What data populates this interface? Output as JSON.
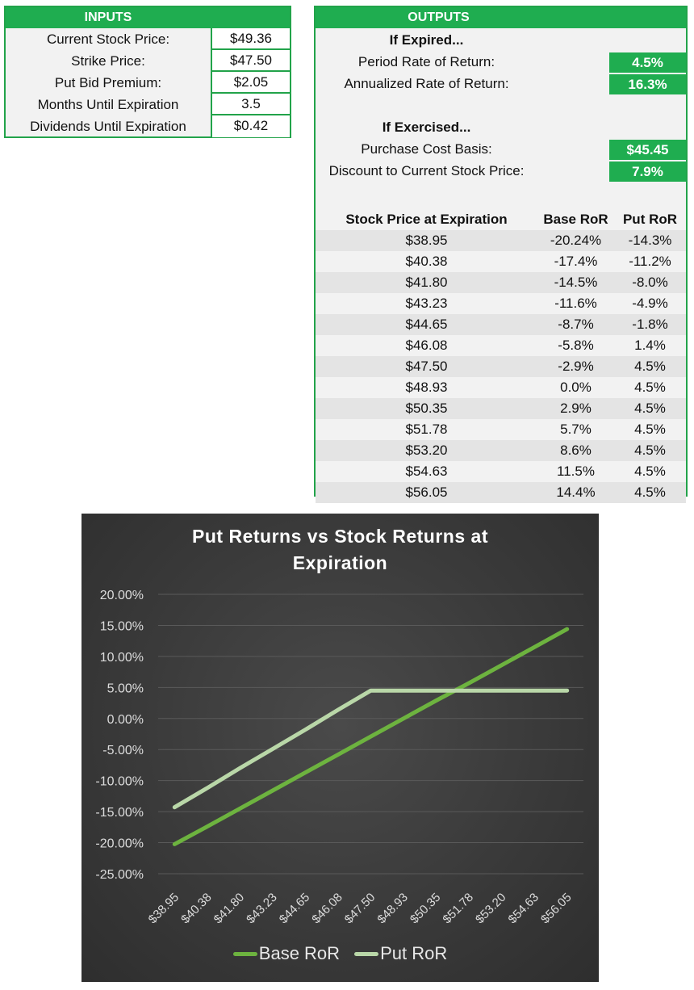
{
  "inputs": {
    "header": "INPUTS",
    "rows": [
      {
        "label": "Current Stock Price:",
        "value": "$49.36"
      },
      {
        "label": "Strike Price:",
        "value": "$47.50"
      },
      {
        "label": "Put Bid Premium:",
        "value": "$2.05"
      },
      {
        "label": "Months Until Expiration",
        "value": "3.5"
      },
      {
        "label": "Dividends Until Expiration",
        "value": "$0.42"
      }
    ]
  },
  "outputs": {
    "header": "OUTPUTS",
    "expired": {
      "heading": "If Expired...",
      "period_label": "Period Rate of Return:",
      "period_value": "4.5%",
      "annual_label": "Annualized Rate of Return:",
      "annual_value": "16.3%"
    },
    "exercised": {
      "heading": "If Exercised...",
      "basis_label": "Purchase Cost Basis:",
      "basis_value": "$45.45",
      "discount_label": "Discount to Current Stock Price:",
      "discount_value": "7.9%"
    },
    "table": {
      "headers": [
        "Stock Price at Expiration",
        "Base RoR",
        "Put RoR"
      ],
      "rows": [
        [
          "$38.95",
          "-20.24%",
          "-14.3%"
        ],
        [
          "$40.38",
          "-17.4%",
          "-11.2%"
        ],
        [
          "$41.80",
          "-14.5%",
          "-8.0%"
        ],
        [
          "$43.23",
          "-11.6%",
          "-4.9%"
        ],
        [
          "$44.65",
          "-8.7%",
          "-1.8%"
        ],
        [
          "$46.08",
          "-5.8%",
          "1.4%"
        ],
        [
          "$47.50",
          "-2.9%",
          "4.5%"
        ],
        [
          "$48.93",
          "0.0%",
          "4.5%"
        ],
        [
          "$50.35",
          "2.9%",
          "4.5%"
        ],
        [
          "$51.78",
          "5.7%",
          "4.5%"
        ],
        [
          "$53.20",
          "8.6%",
          "4.5%"
        ],
        [
          "$54.63",
          "11.5%",
          "4.5%"
        ],
        [
          "$56.05",
          "14.4%",
          "4.5%"
        ]
      ]
    }
  },
  "colors": {
    "accent_green": "#1fad50",
    "base_series": "#6db33f",
    "put_series": "#b9d7a8",
    "chart_bg": "#3c3c3c"
  },
  "chart_data": {
    "type": "line",
    "title": "Put Returns vs Stock Returns at Expiration",
    "title_lines": [
      "Put Returns vs Stock Returns at",
      "Expiration"
    ],
    "xlabel": "",
    "ylabel": "",
    "categories": [
      "$38.95",
      "$40.38",
      "$41.80",
      "$43.23",
      "$44.65",
      "$46.08",
      "$47.50",
      "$48.93",
      "$50.35",
      "$51.78",
      "$53.20",
      "$54.63",
      "$56.05"
    ],
    "series": [
      {
        "name": "Base RoR",
        "values": [
          -20.24,
          -17.4,
          -14.5,
          -11.6,
          -8.7,
          -5.8,
          -2.9,
          0.0,
          2.9,
          5.7,
          8.6,
          11.5,
          14.4
        ]
      },
      {
        "name": "Put RoR",
        "values": [
          -14.3,
          -11.2,
          -8.0,
          -4.9,
          -1.8,
          1.4,
          4.5,
          4.5,
          4.5,
          4.5,
          4.5,
          4.5,
          4.5
        ]
      }
    ],
    "yticks": [
      "20.00%",
      "15.00%",
      "10.00%",
      "5.00%",
      "0.00%",
      "-5.00%",
      "-10.00%",
      "-15.00%",
      "-20.00%",
      "-25.00%"
    ],
    "ylim": [
      -25,
      20
    ],
    "grid": true,
    "legend_position": "bottom"
  }
}
